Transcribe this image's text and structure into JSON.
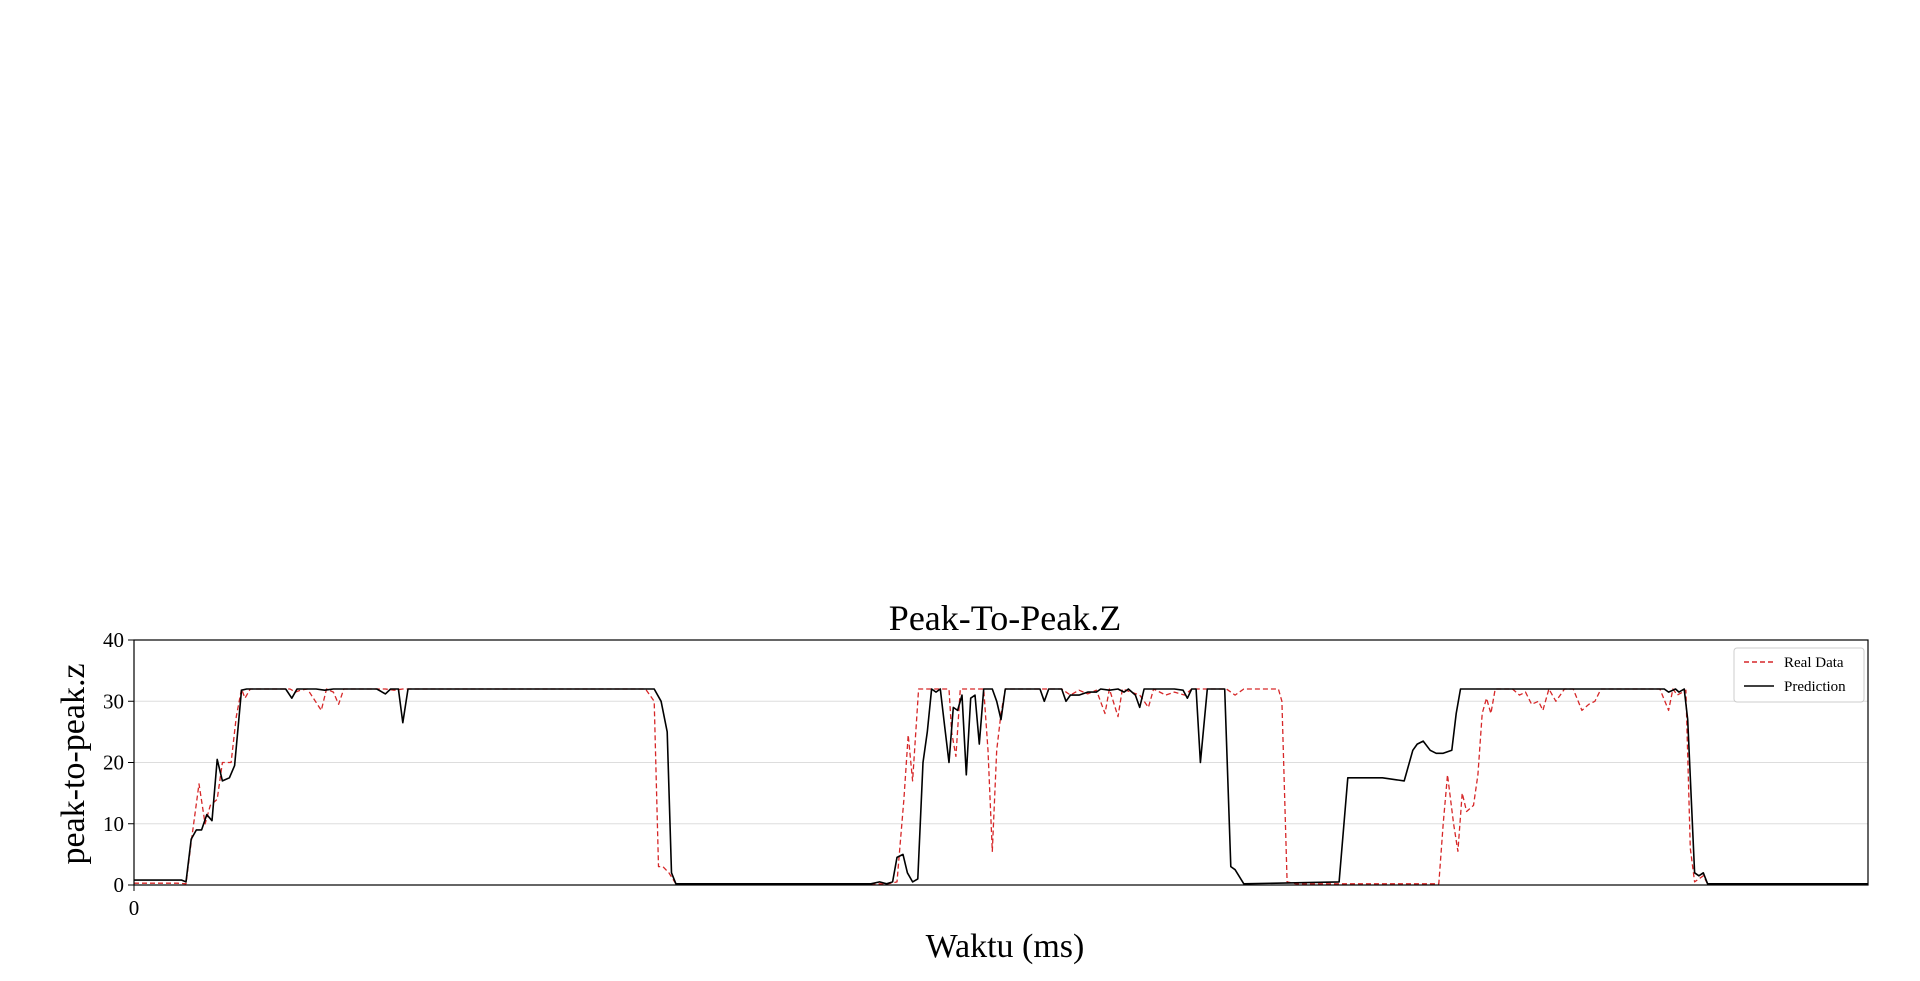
{
  "chart_data": {
    "type": "line",
    "title": "Peak-To-Peak.Z",
    "xlabel": "Waktu (ms)",
    "ylabel": "peak-to-peak.z",
    "xlim": [
      0,
      2000
    ],
    "ylim": [
      0,
      40
    ],
    "xticks": [
      0
    ],
    "yticks": [
      0,
      10,
      20,
      30,
      40
    ],
    "grid": "horizontal",
    "legend_position": "top-right",
    "series": [
      {
        "name": "Real Data",
        "color": "#d62728",
        "style": "dashed",
        "points": [
          [
            0,
            0.3
          ],
          [
            50,
            0.3
          ],
          [
            60,
            0.2
          ],
          [
            66,
            7
          ],
          [
            75,
            16.5
          ],
          [
            82,
            10
          ],
          [
            88,
            13
          ],
          [
            96,
            14
          ],
          [
            102,
            20
          ],
          [
            112,
            20
          ],
          [
            118,
            27.5
          ],
          [
            124,
            32
          ],
          [
            128,
            30.5
          ],
          [
            134,
            32
          ],
          [
            180,
            32
          ],
          [
            186,
            31.5
          ],
          [
            192,
            31.8
          ],
          [
            200,
            32
          ],
          [
            216,
            28.5
          ],
          [
            222,
            32
          ],
          [
            230,
            31.5
          ],
          [
            236,
            29.5
          ],
          [
            242,
            32
          ],
          [
            290,
            32
          ],
          [
            300,
            31.8
          ],
          [
            310,
            32
          ],
          [
            590,
            32
          ],
          [
            600,
            30
          ],
          [
            605,
            3
          ],
          [
            610,
            3
          ],
          [
            617,
            2
          ],
          [
            625,
            0.2
          ],
          [
            820,
            0.2
          ],
          [
            870,
            0.2
          ],
          [
            880,
            0.5
          ],
          [
            888,
            14
          ],
          [
            893,
            24.5
          ],
          [
            898,
            17
          ],
          [
            905,
            32
          ],
          [
            940,
            32
          ],
          [
            943,
            25
          ],
          [
            948,
            21
          ],
          [
            953,
            32
          ],
          [
            980,
            32
          ],
          [
            985,
            22
          ],
          [
            990,
            5.5
          ],
          [
            995,
            22
          ],
          [
            1000,
            28
          ],
          [
            1005,
            32
          ],
          [
            1070,
            32
          ],
          [
            1080,
            31
          ],
          [
            1090,
            31.8
          ],
          [
            1100,
            31.2
          ],
          [
            1110,
            31.8
          ],
          [
            1120,
            28
          ],
          [
            1125,
            32
          ],
          [
            1135,
            27.5
          ],
          [
            1140,
            32
          ],
          [
            1160,
            31
          ],
          [
            1170,
            29
          ],
          [
            1176,
            32
          ],
          [
            1190,
            31
          ],
          [
            1200,
            31.5
          ],
          [
            1212,
            31
          ],
          [
            1220,
            32
          ],
          [
            1260,
            32
          ],
          [
            1270,
            31
          ],
          [
            1280,
            32
          ],
          [
            1320,
            32
          ],
          [
            1324,
            30
          ],
          [
            1330,
            0.5
          ],
          [
            1340,
            0.2
          ],
          [
            1460,
            0.2
          ],
          [
            1505,
            0.2
          ],
          [
            1510,
            10
          ],
          [
            1515,
            18
          ],
          [
            1522,
            10
          ],
          [
            1527,
            5.5
          ],
          [
            1532,
            15
          ],
          [
            1537,
            12
          ],
          [
            1545,
            13
          ],
          [
            1550,
            18
          ],
          [
            1555,
            28
          ],
          [
            1560,
            30.5
          ],
          [
            1565,
            28
          ],
          [
            1570,
            32
          ],
          [
            1590,
            32
          ],
          [
            1598,
            31
          ],
          [
            1605,
            31.5
          ],
          [
            1612,
            29.5
          ],
          [
            1620,
            30
          ],
          [
            1625,
            28.5
          ],
          [
            1632,
            32
          ],
          [
            1640,
            30
          ],
          [
            1650,
            32
          ],
          [
            1660,
            32
          ],
          [
            1670,
            28.5
          ],
          [
            1678,
            29.5
          ],
          [
            1685,
            30
          ],
          [
            1692,
            32
          ],
          [
            1760,
            32
          ],
          [
            1770,
            28.5
          ],
          [
            1775,
            32
          ],
          [
            1780,
            31
          ],
          [
            1790,
            31.8
          ],
          [
            1795,
            6
          ],
          [
            1800,
            0.5
          ],
          [
            1810,
            1.5
          ],
          [
            1815,
            0.2
          ],
          [
            2000,
            0.2
          ]
        ]
      },
      {
        "name": "Prediction",
        "color": "#000000",
        "style": "solid",
        "points": [
          [
            0,
            0.8
          ],
          [
            55,
            0.8
          ],
          [
            60,
            0.5
          ],
          [
            66,
            7.5
          ],
          [
            72,
            9
          ],
          [
            78,
            9
          ],
          [
            84,
            11.5
          ],
          [
            90,
            10.5
          ],
          [
            96,
            20.5
          ],
          [
            102,
            17
          ],
          [
            110,
            17.5
          ],
          [
            116,
            19.5
          ],
          [
            124,
            31.8
          ],
          [
            130,
            32
          ],
          [
            175,
            32
          ],
          [
            182,
            30.5
          ],
          [
            188,
            32
          ],
          [
            210,
            32
          ],
          [
            220,
            31.8
          ],
          [
            230,
            32
          ],
          [
            280,
            32
          ],
          [
            290,
            31.2
          ],
          [
            296,
            32
          ],
          [
            305,
            32
          ],
          [
            310,
            26.5
          ],
          [
            316,
            32
          ],
          [
            600,
            32
          ],
          [
            608,
            30
          ],
          [
            615,
            25
          ],
          [
            620,
            2
          ],
          [
            625,
            0.2
          ],
          [
            850,
            0.2
          ],
          [
            860,
            0.5
          ],
          [
            868,
            0.2
          ],
          [
            875,
            0.5
          ],
          [
            880,
            4.5
          ],
          [
            887,
            5
          ],
          [
            892,
            2
          ],
          [
            898,
            0.5
          ],
          [
            904,
            1
          ],
          [
            910,
            20
          ],
          [
            915,
            25
          ],
          [
            920,
            32
          ],
          [
            925,
            31.5
          ],
          [
            930,
            32
          ],
          [
            935,
            26
          ],
          [
            940,
            20
          ],
          [
            945,
            29
          ],
          [
            950,
            28.5
          ],
          [
            955,
            31
          ],
          [
            960,
            18
          ],
          [
            965,
            30.5
          ],
          [
            970,
            31
          ],
          [
            975,
            23
          ],
          [
            980,
            32
          ],
          [
            990,
            32
          ],
          [
            995,
            30
          ],
          [
            1000,
            27
          ],
          [
            1005,
            32
          ],
          [
            1045,
            32
          ],
          [
            1050,
            30
          ],
          [
            1055,
            32
          ],
          [
            1070,
            32
          ],
          [
            1075,
            30
          ],
          [
            1080,
            31
          ],
          [
            1090,
            31
          ],
          [
            1100,
            31.5
          ],
          [
            1110,
            31.5
          ],
          [
            1115,
            32
          ],
          [
            1125,
            31.8
          ],
          [
            1135,
            32
          ],
          [
            1142,
            31.5
          ],
          [
            1147,
            32
          ],
          [
            1155,
            31
          ],
          [
            1160,
            29
          ],
          [
            1165,
            32
          ],
          [
            1180,
            32
          ],
          [
            1190,
            32
          ],
          [
            1200,
            32
          ],
          [
            1210,
            31.8
          ],
          [
            1215,
            30.5
          ],
          [
            1220,
            32
          ],
          [
            1225,
            32
          ],
          [
            1230,
            20
          ],
          [
            1238,
            32
          ],
          [
            1258,
            32
          ],
          [
            1265,
            3
          ],
          [
            1270,
            2.5
          ],
          [
            1280,
            0.2
          ],
          [
            1390,
            0.5
          ],
          [
            1400,
            17.5
          ],
          [
            1440,
            17.5
          ],
          [
            1465,
            17
          ],
          [
            1475,
            22
          ],
          [
            1480,
            23
          ],
          [
            1487,
            23.5
          ],
          [
            1495,
            22
          ],
          [
            1502,
            21.5
          ],
          [
            1510,
            21.5
          ],
          [
            1520,
            22
          ],
          [
            1525,
            28
          ],
          [
            1530,
            32
          ],
          [
            1765,
            32
          ],
          [
            1770,
            31.5
          ],
          [
            1778,
            32
          ],
          [
            1782,
            31.5
          ],
          [
            1788,
            32
          ],
          [
            1792,
            27
          ],
          [
            1800,
            2
          ],
          [
            1805,
            1.5
          ],
          [
            1810,
            2
          ],
          [
            1815,
            0.2
          ],
          [
            1820,
            0.2
          ],
          [
            2000,
            0.2
          ]
        ]
      }
    ]
  }
}
